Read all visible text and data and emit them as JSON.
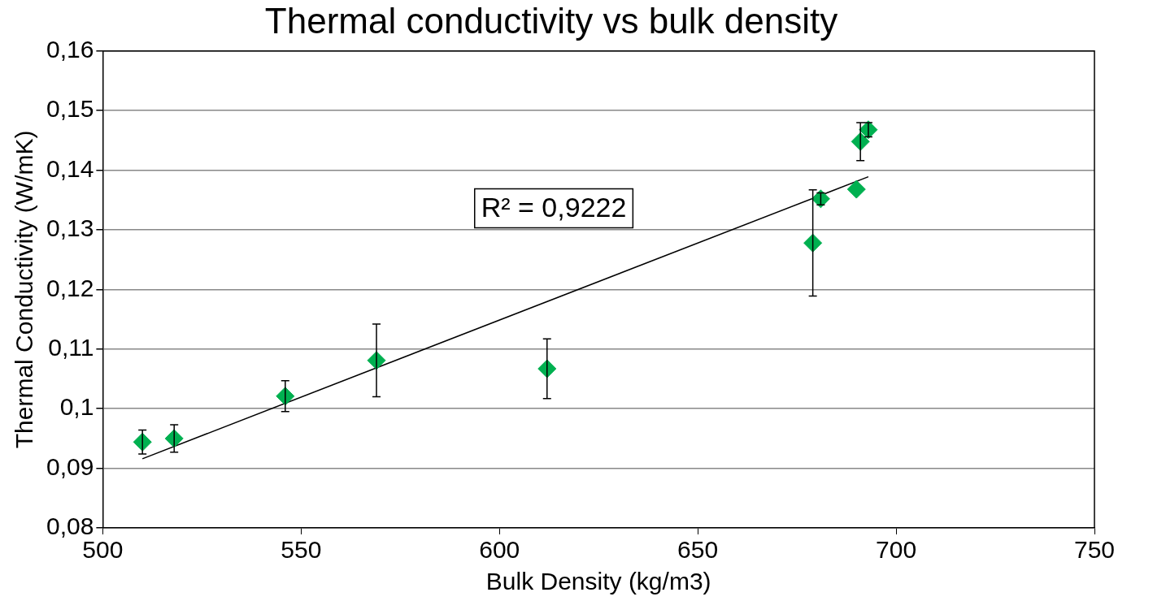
{
  "chart_data": {
    "type": "scatter",
    "title": "Thermal conductivity vs bulk density",
    "xlabel": "Bulk Density (kg/m3)",
    "ylabel": "Thermal Conductivity (W/mK)",
    "xlim": [
      500,
      750
    ],
    "xticks": [
      500,
      550,
      600,
      650,
      700,
      750
    ],
    "ylim": [
      0.08,
      0.16
    ],
    "yticks": [
      {
        "value": 0.08,
        "label": "0,08"
      },
      {
        "value": 0.09,
        "label": "0,09"
      },
      {
        "value": 0.1,
        "label": "0,1"
      },
      {
        "value": 0.11,
        "label": "0,11"
      },
      {
        "value": 0.12,
        "label": "0,12"
      },
      {
        "value": 0.13,
        "label": "0,13"
      },
      {
        "value": 0.14,
        "label": "0,14"
      },
      {
        "value": 0.15,
        "label": "0,15"
      },
      {
        "value": 0.16,
        "label": "0,16"
      }
    ],
    "grid": "y",
    "legend": false,
    "marker": "diamond",
    "annotations": [
      "R² = 0,9222"
    ],
    "series": [
      {
        "type": "scatter",
        "color": "#00b050",
        "x": [
          510,
          518,
          546,
          569,
          612,
          679,
          681,
          690,
          691,
          693
        ],
        "values": [
          0.0944,
          0.095,
          0.1021,
          0.1081,
          0.1067,
          0.1278,
          0.1352,
          0.1368,
          0.1448,
          0.1468
        ],
        "errors": [
          0.002,
          0.0023,
          0.0026,
          0.0061,
          0.005,
          0.0089,
          0.001,
          null,
          0.0032,
          0.0012
        ]
      },
      {
        "type": "line",
        "color": "#000000",
        "x": [
          510,
          693
        ],
        "values": [
          0.0916,
          0.1389
        ],
        "marker": "none"
      }
    ]
  }
}
